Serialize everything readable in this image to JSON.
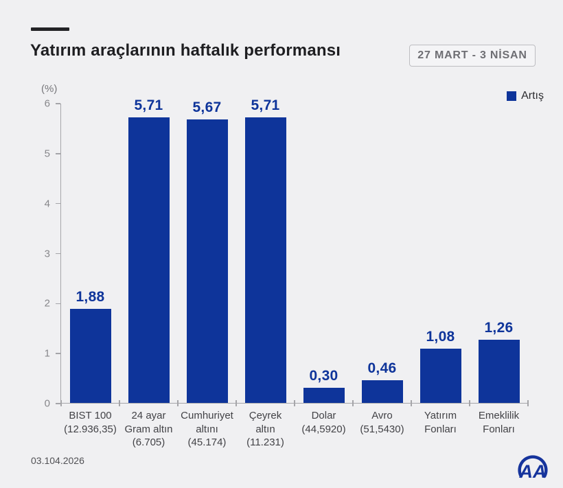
{
  "header": {
    "title": "Yatırım araçlarının haftalık performansı",
    "date_range": "27 MART - 3 NİSAN"
  },
  "legend": {
    "label": "Artış"
  },
  "footer": {
    "date": "03.104.2026",
    "logo": "AA"
  },
  "colors": {
    "background": "#f0f0f2",
    "bar": "#0e349a",
    "value_label": "#0e349a",
    "axis": "#a5a5a9",
    "logo_blue": "#16349c"
  },
  "chart_data": {
    "type": "bar",
    "title": "Yatırım araçlarının haftalık performansı",
    "subtitle": "27 MART - 3 NİSAN",
    "ylabel": "(%)",
    "ylim": [
      0,
      6
    ],
    "yticks": [
      0,
      1,
      2,
      3,
      4,
      5,
      6
    ],
    "grid": false,
    "legend_position": "top-right",
    "legend_entries": [
      "Artış"
    ],
    "categories": [
      {
        "lines": [
          "BIST 100",
          "(12.936,35)"
        ]
      },
      {
        "lines": [
          "24 ayar",
          "Gram altın",
          "(6.705)"
        ]
      },
      {
        "lines": [
          "Cumhuriyet",
          "altını",
          "(45.174)"
        ]
      },
      {
        "lines": [
          "Çeyrek",
          "altın",
          "(11.231)"
        ]
      },
      {
        "lines": [
          "Dolar",
          "(44,5920)"
        ]
      },
      {
        "lines": [
          "Avro",
          "(51,5430)"
        ]
      },
      {
        "lines": [
          "Yatırım",
          "Fonları"
        ]
      },
      {
        "lines": [
          "Emeklilik",
          "Fonları"
        ]
      }
    ],
    "values": [
      1.88,
      5.71,
      5.67,
      5.71,
      0.3,
      0.46,
      1.08,
      1.26
    ],
    "value_labels": [
      "1,88",
      "5,71",
      "5,67",
      "5,71",
      "0,30",
      "0,46",
      "1,08",
      "1,26"
    ]
  }
}
